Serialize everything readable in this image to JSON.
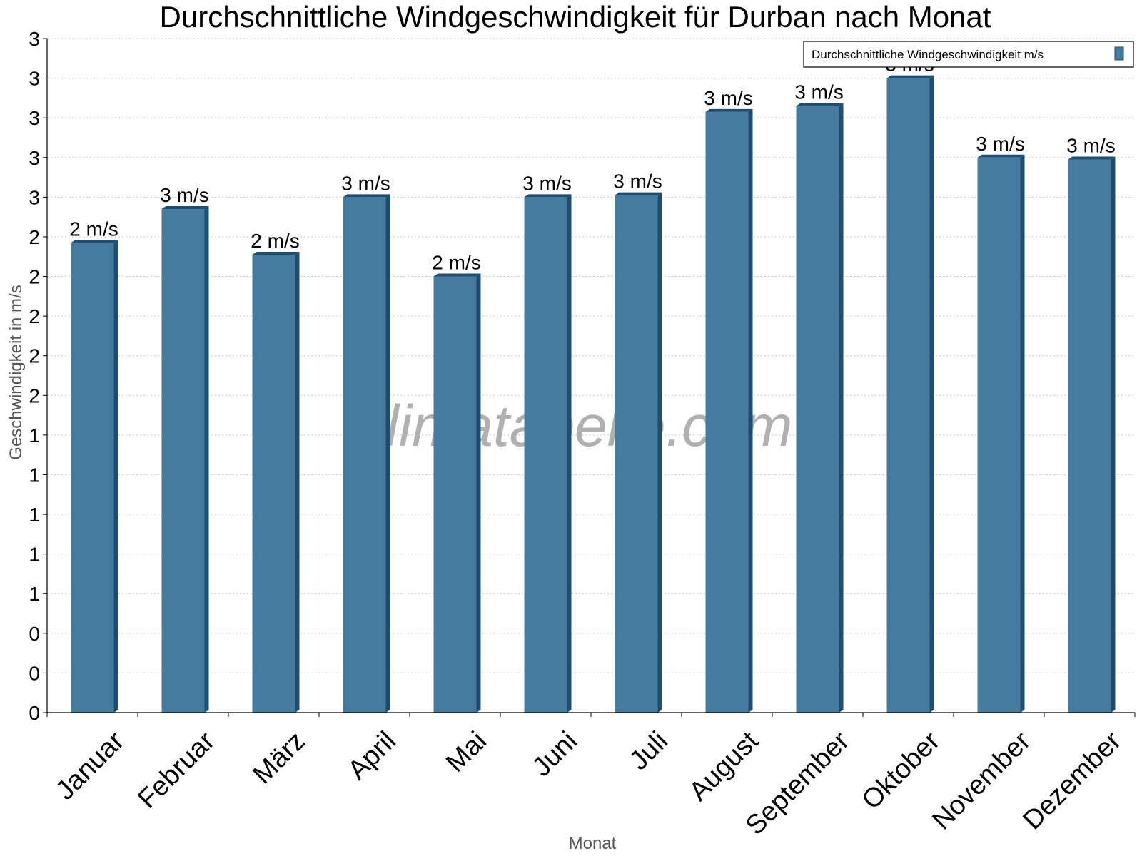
{
  "chart_data": {
    "type": "bar",
    "title": "Durchschnittliche Windgeschwindigkeit für Durban nach Monat",
    "xlabel": "Monat",
    "ylabel": "Geschwindigkeit in m/s",
    "categories": [
      "Januar",
      "Februar",
      "März",
      "April",
      "Mai",
      "Juni",
      "Juli",
      "August",
      "September",
      "Oktober",
      "November",
      "Dezember"
    ],
    "series": [
      {
        "name": "Durchschnittliche Windgeschwindigkeit m/s",
        "color": "#467ba0",
        "values": [
          2.37,
          2.54,
          2.31,
          2.6,
          2.2,
          2.6,
          2.61,
          3.03,
          3.06,
          3.2,
          2.8,
          2.79
        ],
        "labels": [
          "2 m/s",
          "3 m/s",
          "2 m/s",
          "3 m/s",
          "2 m/s",
          "3 m/s",
          "3 m/s",
          "3 m/s",
          "3 m/s",
          "3 m/s",
          "3 m/s",
          "3 m/s"
        ]
      }
    ],
    "ylim": [
      0,
      3.4
    ],
    "yticks": [
      0,
      0.2,
      0.4,
      0.6,
      0.8,
      1.0,
      1.2,
      1.4,
      1.6,
      1.8,
      2.0,
      2.2,
      2.4,
      2.6,
      2.8,
      3.0,
      3.2,
      3.4
    ],
    "ytick_labels": [
      "0",
      "0",
      "0",
      "1",
      "1",
      "1",
      "1",
      "1",
      "2",
      "2",
      "2",
      "2",
      "2",
      "3",
      "3",
      "3",
      "3",
      "3"
    ],
    "grid": true,
    "legend_position": "top-right",
    "watermark": "klimatabelle.com"
  }
}
